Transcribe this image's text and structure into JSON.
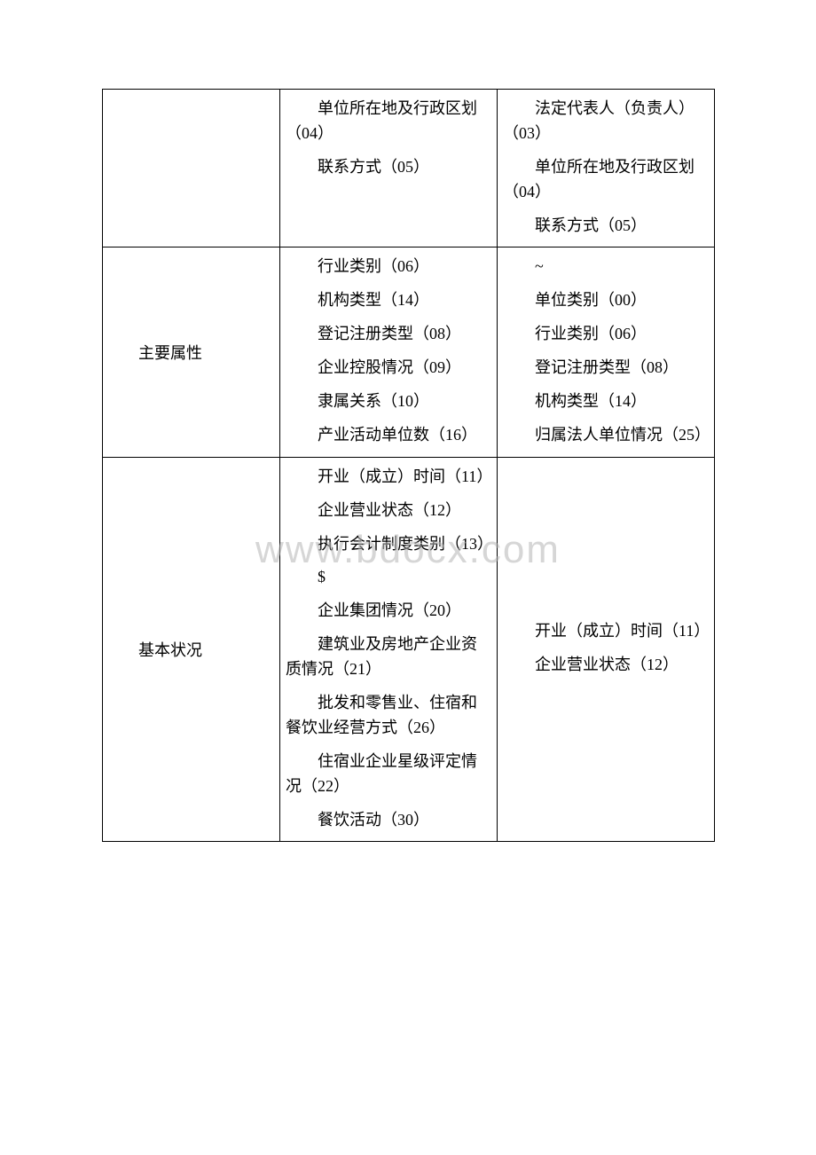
{
  "watermark": "www.bdocx.com",
  "rows": [
    {
      "label": "",
      "col2": [
        "单位所在地及行政区划（04）",
        "联系方式（05）"
      ],
      "col3": [
        "法定代表人（负责人）（03）",
        "单位所在地及行政区划（04）",
        "联系方式（05）"
      ]
    },
    {
      "label": "主要属性",
      "col2": [
        "行业类别（06）",
        "机构类型（14）",
        "登记注册类型（08）",
        "企业控股情况（09）",
        "隶属关系（10）",
        "产业活动单位数（16）"
      ],
      "col3": [
        "~",
        "单位类别（00）",
        "行业类别（06）",
        "登记注册类型（08）",
        "机构类型（14）",
        "归属法人单位情况（25）"
      ]
    },
    {
      "label": "基本状况",
      "col2": [
        "开业（成立）时间（11）",
        "企业营业状态（12）",
        "执行会计制度类别（13）",
        "$",
        "企业集团情况（20）",
        "建筑业及房地产企业资质情况（21）",
        "批发和零售业、住宿和餐饮业经营方式（26）",
        "住宿业企业星级评定情况（22）",
        "餐饮活动（30）"
      ],
      "col3": [
        "开业（成立）时间（11）",
        "企业营业状态（12）"
      ]
    }
  ],
  "colors": {
    "text": "#000000",
    "border": "#000000",
    "background": "#ffffff",
    "watermark": "rgba(180,180,180,0.55)"
  },
  "fontsize": {
    "body": 18,
    "watermark": 44
  }
}
